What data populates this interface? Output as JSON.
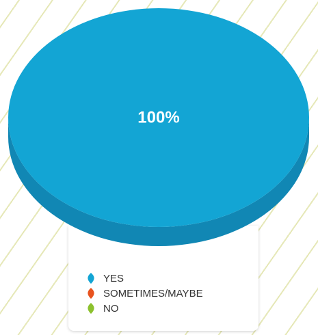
{
  "chart_data": {
    "type": "pie",
    "title": "",
    "slices": [
      {
        "label": "YES",
        "value": 100,
        "percent_label": "100%",
        "color": "#13a5d4"
      },
      {
        "label": "SOMETIMES/MAYBE",
        "value": 0,
        "color": "#e8531f"
      },
      {
        "label": "NO",
        "value": 0,
        "color": "#8cc12e"
      }
    ],
    "legend_placement": "bottom",
    "style": "3d"
  },
  "colors": {
    "pie_top": "#13a5d4",
    "pie_side": "#1187b4",
    "background_stripe": "#e6e8b8",
    "label_text": "#ffffff"
  },
  "legend": {
    "items": [
      {
        "label": "YES",
        "color": "#13a5d4",
        "icon": "leaf-icon"
      },
      {
        "label": "SOMETIMES/MAYBE",
        "color": "#e8531f",
        "icon": "leaf-icon"
      },
      {
        "label": "NO",
        "color": "#8cc12e",
        "icon": "leaf-icon"
      }
    ]
  }
}
